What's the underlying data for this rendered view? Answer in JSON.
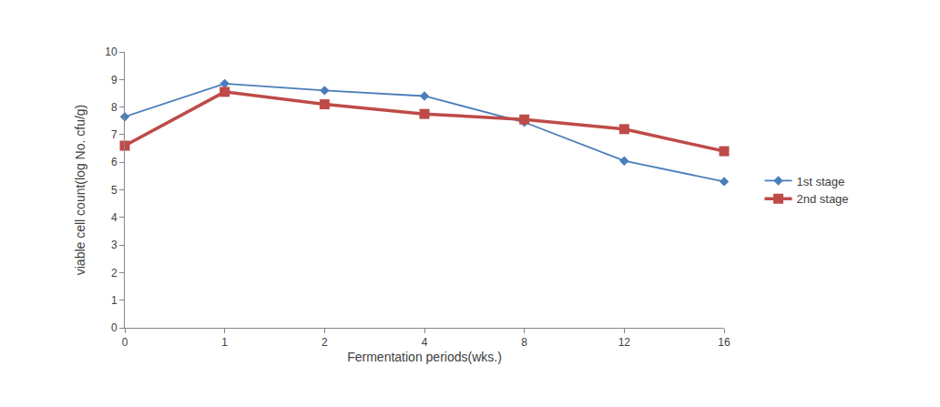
{
  "chart_data": {
    "type": "line",
    "x_label": "Fermentation periods(wks.)",
    "y_label": "viable cell count(log No. cfu/g)",
    "categories": [
      "0",
      "1",
      "2",
      "4",
      "8",
      "12",
      "16"
    ],
    "series": [
      {
        "name": "1st stage",
        "color": "#4a7ebb",
        "marker": "diamond",
        "values": [
          7.65,
          8.85,
          8.6,
          8.4,
          7.45,
          6.05,
          5.3
        ]
      },
      {
        "name": "2nd stage",
        "color": "#be4b48",
        "marker": "square",
        "values": [
          6.6,
          8.55,
          8.1,
          7.75,
          7.55,
          7.2,
          6.4
        ]
      }
    ],
    "ylim": [
      0,
      10
    ],
    "yticks": [
      0,
      1,
      2,
      3,
      4,
      5,
      6,
      7,
      8,
      9,
      10
    ],
    "grid": false,
    "legend": "right"
  }
}
